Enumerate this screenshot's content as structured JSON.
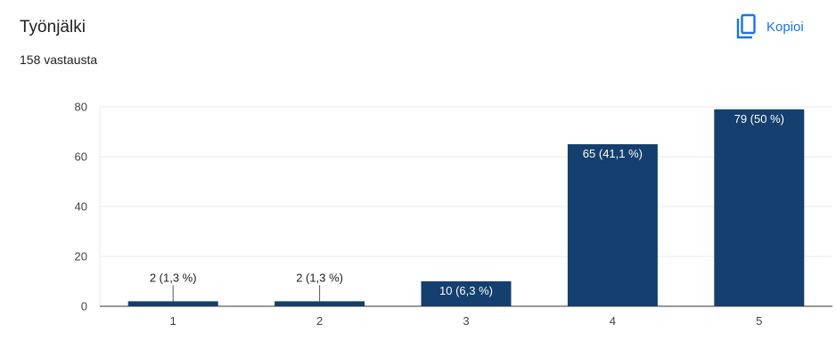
{
  "header": {
    "title": "Työnjälki",
    "subtitle": "158 vastausta",
    "copy_label": "Kopioi",
    "copy_icon": "copy-icon"
  },
  "colors": {
    "bar": "#143f6e",
    "accent": "#1a73e8",
    "grid": "#e8e8e8",
    "axis": "#333333"
  },
  "chart_data": {
    "type": "bar",
    "categories": [
      "1",
      "2",
      "3",
      "4",
      "5"
    ],
    "values": [
      2,
      2,
      10,
      65,
      79
    ],
    "data_labels": [
      "2 (1,3 %)",
      "2 (1,3 %)",
      "10 (6,3 %)",
      "65 (41,1 %)",
      "79 (50 %)"
    ],
    "ylim": [
      0,
      80
    ],
    "yticks": [
      0,
      20,
      40,
      60,
      80
    ],
    "grid": true,
    "xlabel": "",
    "ylabel": ""
  }
}
